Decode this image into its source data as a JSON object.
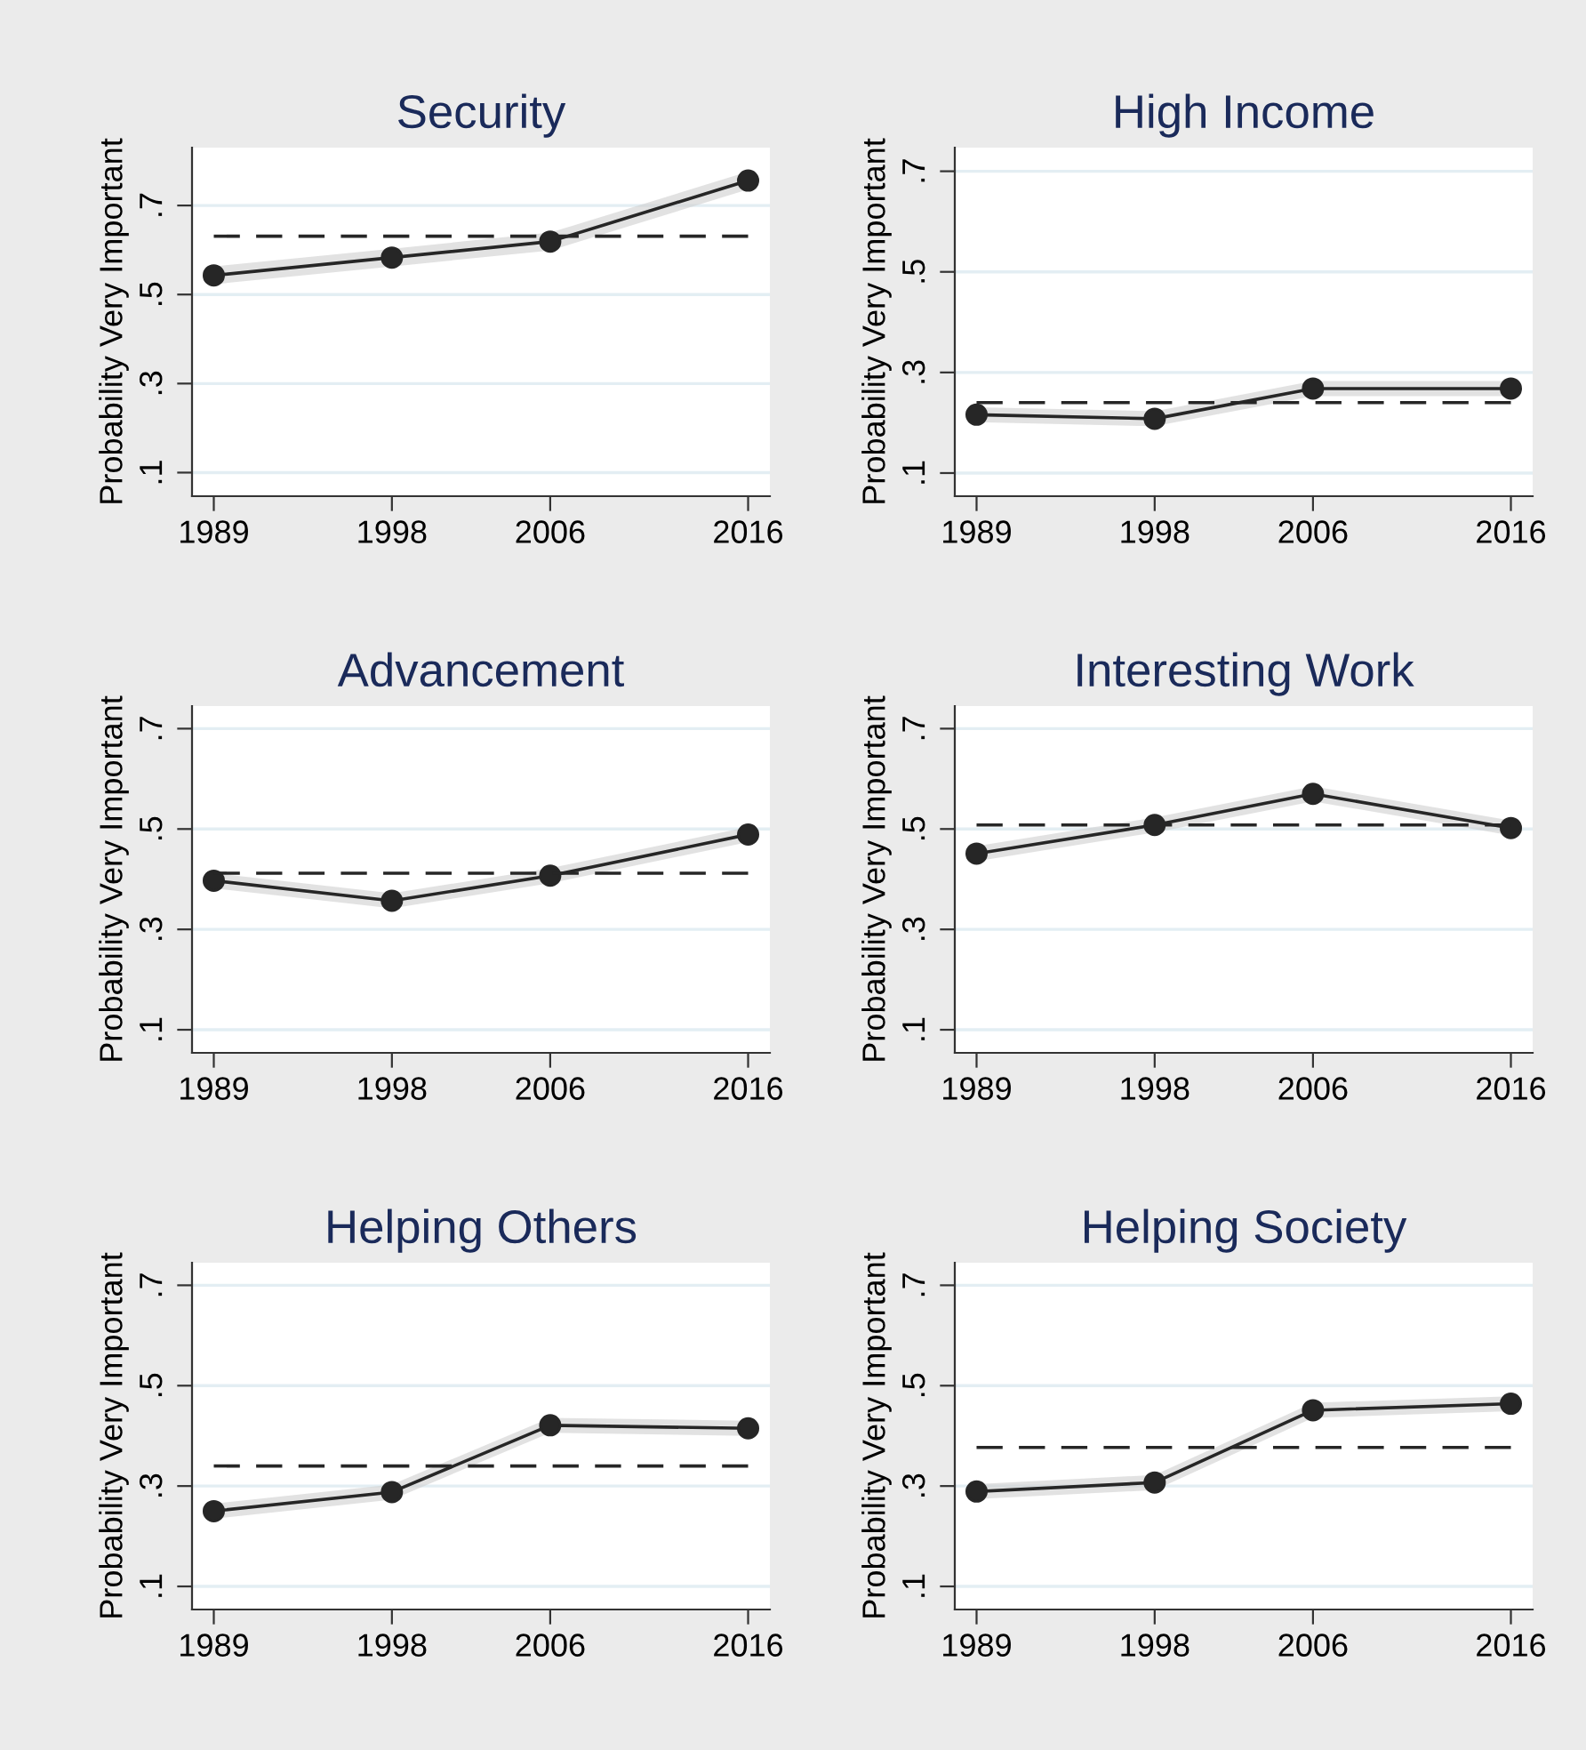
{
  "chart_data": [
    {
      "type": "line",
      "title": "Security",
      "ylabel": "Probability Very Important",
      "x": [
        1989,
        1998,
        2006,
        2016
      ],
      "xlim": [
        1987.9,
        2017.1
      ],
      "xticks": [
        1989,
        1998,
        2006,
        2016
      ],
      "ylim": [
        0.047,
        0.83
      ],
      "yticks": [
        {
          "value": 0.1,
          "label": ".1"
        },
        {
          "value": 0.3,
          "label": ".3"
        },
        {
          "value": 0.5,
          "label": ".5"
        },
        {
          "value": 0.7,
          "label": ".7"
        }
      ],
      "grid": "y",
      "marker": "circle",
      "ref_lines": [
        {
          "axis": "y",
          "value": 0.631,
          "line_style": "dashed",
          "color": "#262626"
        }
      ],
      "series": [
        {
          "color": "#262626",
          "values": [
            0.543,
            0.583,
            0.619,
            0.756
          ],
          "lower": [
            0.523,
            0.563,
            0.599,
            0.736
          ],
          "upper": [
            0.563,
            0.603,
            0.639,
            0.776
          ]
        }
      ]
    },
    {
      "type": "line",
      "title": "High Income",
      "ylabel": "Probability Very Important",
      "x": [
        1989,
        1998,
        2006,
        2016
      ],
      "xlim": [
        1987.9,
        2017.1
      ],
      "xticks": [
        1989,
        1998,
        2006,
        2016
      ],
      "ylim": [
        0.054,
        0.747
      ],
      "yticks": [
        {
          "value": 0.1,
          "label": ".1"
        },
        {
          "value": 0.3,
          "label": ".3"
        },
        {
          "value": 0.5,
          "label": ".5"
        },
        {
          "value": 0.7,
          "label": ".7"
        }
      ],
      "grid": "y",
      "marker": "circle",
      "ref_lines": [
        {
          "axis": "y",
          "value": 0.24,
          "line_style": "dashed",
          "color": "#262626"
        }
      ],
      "series": [
        {
          "color": "#262626",
          "values": [
            0.216,
            0.208,
            0.268,
            0.268
          ],
          "lower": [
            0.201,
            0.193,
            0.253,
            0.253
          ],
          "upper": [
            0.231,
            0.223,
            0.283,
            0.283
          ]
        }
      ]
    },
    {
      "type": "line",
      "title": "Advancement",
      "ylabel": "Probability Very Important",
      "x": [
        1989,
        1998,
        2006,
        2016
      ],
      "xlim": [
        1987.9,
        2017.1
      ],
      "xticks": [
        1989,
        1998,
        2006,
        2016
      ],
      "ylim": [
        0.054,
        0.745
      ],
      "yticks": [
        {
          "value": 0.1,
          "label": ".1"
        },
        {
          "value": 0.3,
          "label": ".3"
        },
        {
          "value": 0.5,
          "label": ".5"
        },
        {
          "value": 0.7,
          "label": ".7"
        }
      ],
      "grid": "y",
      "marker": "circle",
      "ref_lines": [
        {
          "axis": "y",
          "value": 0.412,
          "line_style": "dashed",
          "color": "#262626"
        }
      ],
      "series": [
        {
          "color": "#262626",
          "values": [
            0.397,
            0.357,
            0.407,
            0.489
          ],
          "lower": [
            0.382,
            0.342,
            0.392,
            0.474
          ],
          "upper": [
            0.412,
            0.372,
            0.422,
            0.504
          ]
        }
      ]
    },
    {
      "type": "line",
      "title": "Interesting Work",
      "ylabel": "Probability Very Important",
      "x": [
        1989,
        1998,
        2006,
        2016
      ],
      "xlim": [
        1987.9,
        2017.1
      ],
      "xticks": [
        1989,
        1998,
        2006,
        2016
      ],
      "ylim": [
        0.054,
        0.745
      ],
      "yticks": [
        {
          "value": 0.1,
          "label": ".1"
        },
        {
          "value": 0.3,
          "label": ".3"
        },
        {
          "value": 0.5,
          "label": ".5"
        },
        {
          "value": 0.7,
          "label": ".7"
        }
      ],
      "grid": "y",
      "marker": "circle",
      "ref_lines": [
        {
          "axis": "y",
          "value": 0.508,
          "line_style": "dashed",
          "color": "#262626"
        }
      ],
      "series": [
        {
          "color": "#262626",
          "values": [
            0.451,
            0.508,
            0.57,
            0.502
          ],
          "lower": [
            0.436,
            0.493,
            0.555,
            0.487
          ],
          "upper": [
            0.466,
            0.523,
            0.585,
            0.517
          ]
        }
      ]
    },
    {
      "type": "line",
      "title": "Helping Others",
      "ylabel": "Probability Very Important",
      "x": [
        1989,
        1998,
        2006,
        2016
      ],
      "xlim": [
        1987.9,
        2017.1
      ],
      "xticks": [
        1989,
        1998,
        2006,
        2016
      ],
      "ylim": [
        0.054,
        0.745
      ],
      "yticks": [
        {
          "value": 0.1,
          "label": ".1"
        },
        {
          "value": 0.3,
          "label": ".3"
        },
        {
          "value": 0.5,
          "label": ".5"
        },
        {
          "value": 0.7,
          "label": ".7"
        }
      ],
      "grid": "y",
      "marker": "circle",
      "ref_lines": [
        {
          "axis": "y",
          "value": 0.34,
          "line_style": "dashed",
          "color": "#262626"
        }
      ],
      "series": [
        {
          "color": "#262626",
          "values": [
            0.25,
            0.288,
            0.421,
            0.415
          ],
          "lower": [
            0.235,
            0.273,
            0.406,
            0.4
          ],
          "upper": [
            0.265,
            0.303,
            0.436,
            0.43
          ]
        }
      ]
    },
    {
      "type": "line",
      "title": "Helping Society",
      "ylabel": "Probability Very Important",
      "x": [
        1989,
        1998,
        2006,
        2016
      ],
      "xlim": [
        1987.9,
        2017.1
      ],
      "xticks": [
        1989,
        1998,
        2006,
        2016
      ],
      "ylim": [
        0.054,
        0.745
      ],
      "yticks": [
        {
          "value": 0.1,
          "label": ".1"
        },
        {
          "value": 0.3,
          "label": ".3"
        },
        {
          "value": 0.5,
          "label": ".5"
        },
        {
          "value": 0.7,
          "label": ".7"
        }
      ],
      "grid": "y",
      "marker": "circle",
      "ref_lines": [
        {
          "axis": "y",
          "value": 0.377,
          "line_style": "dashed",
          "color": "#262626"
        }
      ],
      "series": [
        {
          "color": "#262626",
          "values": [
            0.289,
            0.307,
            0.451,
            0.464
          ],
          "lower": [
            0.274,
            0.292,
            0.436,
            0.449
          ],
          "upper": [
            0.304,
            0.322,
            0.466,
            0.479
          ]
        }
      ]
    }
  ]
}
